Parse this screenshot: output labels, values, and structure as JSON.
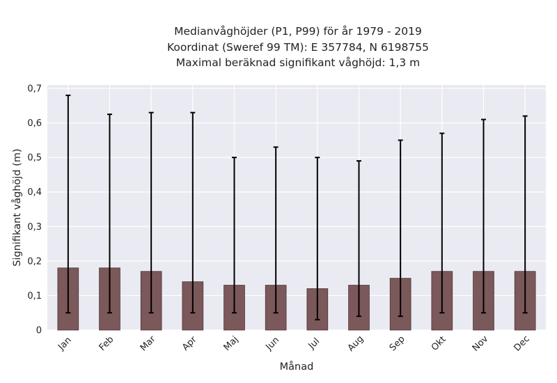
{
  "chart_data": {
    "type": "bar",
    "title_lines": [
      "Medianvåghöjder (P1, P99) för år 1979 - 2019",
      "Koordinat (Sweref 99 TM): E 357784, N 6198755",
      "Maximal beräknad signifikant våghöjd: 1,3 m"
    ],
    "xlabel": "Månad",
    "ylabel": "Signifikant våghöjd (m)",
    "categories": [
      "Jan",
      "Feb",
      "Mar",
      "Apr",
      "Maj",
      "Jun",
      "Jul",
      "Aug",
      "Sep",
      "Okt",
      "Nov",
      "Dec"
    ],
    "series": [
      {
        "values": [
          0.18,
          0.18,
          0.17,
          0.14,
          0.13,
          0.13,
          0.12,
          0.13,
          0.15,
          0.17,
          0.17,
          0.17
        ],
        "error_low": [
          0.05,
          0.05,
          0.05,
          0.05,
          0.05,
          0.05,
          0.03,
          0.04,
          0.04,
          0.05,
          0.05,
          0.05
        ],
        "error_high": [
          0.68,
          0.625,
          0.63,
          0.63,
          0.5,
          0.53,
          0.5,
          0.49,
          0.55,
          0.57,
          0.61,
          0.62
        ]
      }
    ],
    "yticks": [
      "0",
      "0,1",
      "0,2",
      "0,3",
      "0,4",
      "0,5",
      "0,6",
      "0,7"
    ],
    "ylim": [
      0,
      0.71
    ],
    "grid": true,
    "colors": {
      "bar": "#7b5859",
      "bar_edge": "#4a3435",
      "plot_bg": "#eaeaf2",
      "grid": "#ffffff",
      "error_bar": "#000000"
    }
  }
}
